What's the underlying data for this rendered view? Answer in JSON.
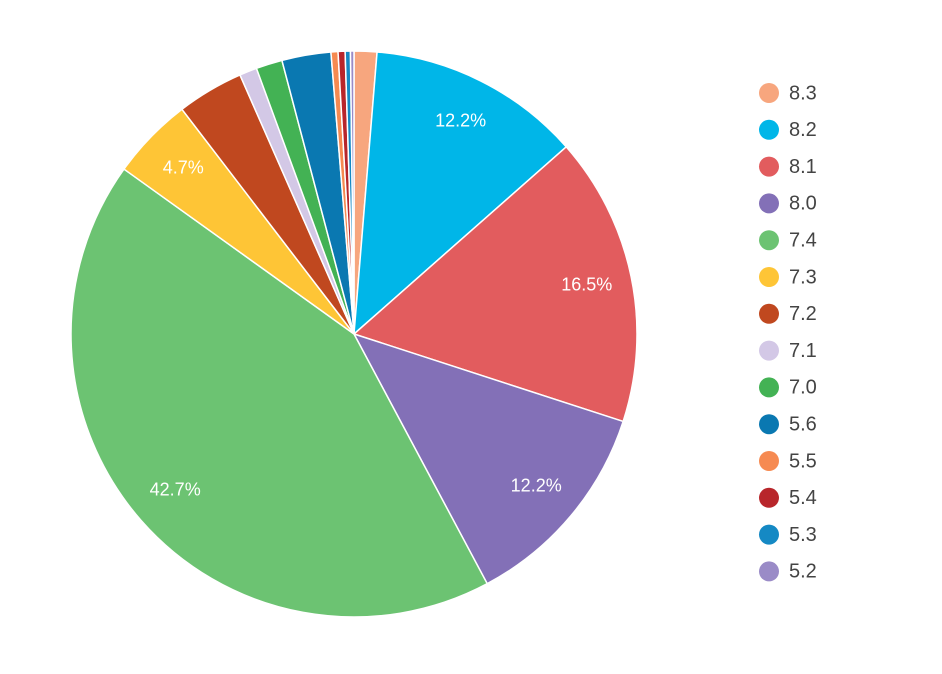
{
  "chart_data": {
    "type": "pie",
    "categories": [
      "8.3",
      "8.2",
      "8.1",
      "8.0",
      "7.4",
      "7.3",
      "7.2",
      "7.1",
      "7.0",
      "5.6",
      "5.5",
      "5.4",
      "5.3",
      "5.2"
    ],
    "values": [
      1.3,
      12.2,
      16.5,
      12.2,
      42.7,
      4.7,
      3.8,
      1.0,
      1.5,
      2.8,
      0.4,
      0.4,
      0.3,
      0.2
    ],
    "value_labels": [
      null,
      "12.2%",
      "16.5%",
      "12.2%",
      "42.7%",
      "4.7%",
      null,
      null,
      null,
      null,
      null,
      null,
      null,
      null
    ],
    "colors": [
      "#f7a67e",
      "#00b6e8",
      "#e25c5e",
      "#8370b7",
      "#6cc372",
      "#fec536",
      "#c0481f",
      "#d3c8e6",
      "#43b254",
      "#0a78b1",
      "#f68a51",
      "#b8262b",
      "#1589c4",
      "#9a8bc7"
    ],
    "legend": "right"
  }
}
